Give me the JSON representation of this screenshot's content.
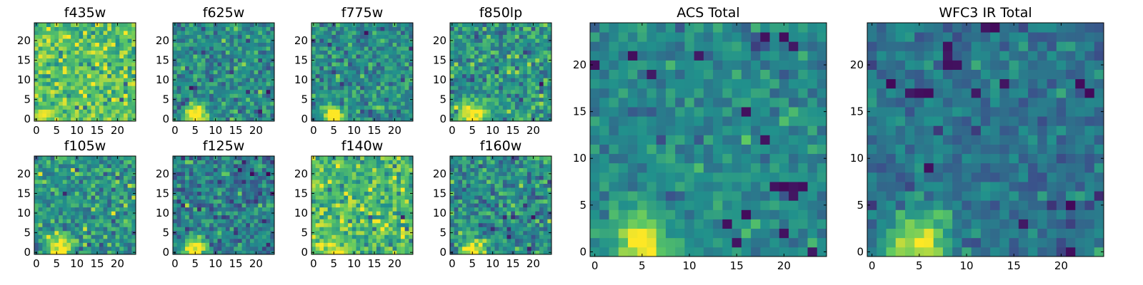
{
  "figure": {
    "colormap": "viridis",
    "colormap_stops": [
      "#440154",
      "#3b528b",
      "#21918c",
      "#5ec962",
      "#fde725"
    ]
  },
  "chart_data": [
    {
      "type": "heatmap",
      "title": "f435w",
      "grid_shape": [
        25,
        25
      ],
      "xlim": [
        -0.5,
        24.5
      ],
      "ylim": [
        -0.5,
        24.5
      ],
      "xticks": [
        0,
        5,
        10,
        15,
        20
      ],
      "yticks": [
        0,
        5,
        10,
        15,
        20
      ],
      "source": {
        "center": [
          5,
          1
        ],
        "sigma": 2.2,
        "amplitude": 0.1
      },
      "background": {
        "mean": 0.72,
        "noise": 0.14
      },
      "values": [
        [
          0.85,
          0.92,
          0.88,
          0.74,
          0.69,
          0.95,
          0.81,
          0.73,
          0.64,
          0.88,
          0.79,
          0.57,
          0.82,
          0.9,
          0.68,
          0.77,
          0.61,
          0.84,
          0.93,
          0.72,
          0.66,
          0.8,
          0.87,
          0.59,
          0.74
        ],
        [
          0.9,
          0.96,
          0.99,
          0.93,
          0.86,
          0.72,
          0.64,
          0.83,
          0.58,
          0.79,
          0.88,
          0.72,
          0.65,
          0.81,
          0.94,
          0.7,
          0.56,
          0.77,
          0.69,
          0.85,
          0.62,
          0.73,
          0.91,
          0.68,
          0.8
        ],
        [
          0.78,
          0.94,
          0.97,
          0.95,
          0.9,
          0.81,
          0.76,
          0.52,
          0.68,
          0.74,
          0.91,
          0.63,
          0.78,
          0.55,
          0.84,
          0.67,
          0.89,
          0.72,
          0.58,
          0.79,
          0.86,
          0.64,
          0.7,
          0.82,
          0.61
        ]
      ]
    },
    {
      "type": "heatmap",
      "title": "f625w",
      "grid_shape": [
        25,
        25
      ],
      "xlim": [
        -0.5,
        24.5
      ],
      "ylim": [
        -0.5,
        24.5
      ],
      "xticks": [
        0,
        5,
        10,
        15,
        20
      ],
      "yticks": [
        0,
        5,
        10,
        15,
        20
      ],
      "source": {
        "center": [
          5,
          1
        ],
        "sigma": 1.8,
        "amplitude": 0.75
      },
      "background": {
        "mean": 0.48,
        "noise": 0.13
      }
    },
    {
      "type": "heatmap",
      "title": "f775w",
      "grid_shape": [
        25,
        25
      ],
      "xlim": [
        -0.5,
        24.5
      ],
      "ylim": [
        -0.5,
        24.5
      ],
      "xticks": [
        0,
        5,
        10,
        15,
        20
      ],
      "yticks": [
        0,
        5,
        10,
        15,
        20
      ],
      "source": {
        "center": [
          5,
          1
        ],
        "sigma": 1.8,
        "amplitude": 0.72
      },
      "background": {
        "mean": 0.48,
        "noise": 0.13
      }
    },
    {
      "type": "heatmap",
      "title": "f850lp",
      "grid_shape": [
        25,
        25
      ],
      "xlim": [
        -0.5,
        24.5
      ],
      "ylim": [
        -0.5,
        24.5
      ],
      "xticks": [
        0,
        5,
        10,
        15,
        20
      ],
      "yticks": [
        0,
        5,
        10,
        15,
        20
      ],
      "source": {
        "center": [
          5,
          1
        ],
        "sigma": 2.0,
        "amplitude": 0.62
      },
      "background": {
        "mean": 0.52,
        "noise": 0.14
      }
    },
    {
      "type": "heatmap",
      "title": "f105w",
      "grid_shape": [
        25,
        25
      ],
      "xlim": [
        -0.5,
        24.5
      ],
      "ylim": [
        -0.5,
        24.5
      ],
      "xticks": [
        0,
        5,
        10,
        15,
        20
      ],
      "yticks": [
        0,
        5,
        10,
        15,
        20
      ],
      "source": {
        "center": [
          6,
          1
        ],
        "sigma": 2.2,
        "amplitude": 0.55
      },
      "background": {
        "mean": 0.52,
        "noise": 0.14
      }
    },
    {
      "type": "heatmap",
      "title": "f125w",
      "grid_shape": [
        25,
        25
      ],
      "xlim": [
        -0.5,
        24.5
      ],
      "ylim": [
        -0.5,
        24.5
      ],
      "xticks": [
        0,
        5,
        10,
        15,
        20
      ],
      "yticks": [
        0,
        5,
        10,
        15,
        20
      ],
      "source": {
        "center": [
          5,
          1
        ],
        "sigma": 2.0,
        "amplitude": 0.7
      },
      "background": {
        "mean": 0.42,
        "noise": 0.13
      }
    },
    {
      "type": "heatmap",
      "title": "f140w",
      "grid_shape": [
        25,
        25
      ],
      "xlim": [
        -0.5,
        24.5
      ],
      "ylim": [
        -0.5,
        24.5
      ],
      "xticks": [
        0,
        5,
        10,
        15,
        20
      ],
      "yticks": [
        0,
        5,
        10,
        15,
        20
      ],
      "source": {
        "center": [
          5,
          1
        ],
        "sigma": 2.6,
        "amplitude": 0.25
      },
      "background": {
        "mean": 0.68,
        "noise": 0.14
      }
    },
    {
      "type": "heatmap",
      "title": "f160w",
      "grid_shape": [
        25,
        25
      ],
      "xlim": [
        -0.5,
        24.5
      ],
      "ylim": [
        -0.5,
        24.5
      ],
      "xticks": [
        0,
        5,
        10,
        15,
        20
      ],
      "yticks": [
        0,
        5,
        10,
        15,
        20
      ],
      "source": {
        "center": [
          5,
          1
        ],
        "sigma": 2.0,
        "amplitude": 0.6
      },
      "background": {
        "mean": 0.48,
        "noise": 0.14
      }
    },
    {
      "type": "heatmap",
      "title": "ACS Total",
      "grid_shape": [
        25,
        25
      ],
      "xlim": [
        -0.5,
        24.5
      ],
      "ylim": [
        -0.5,
        24.5
      ],
      "xticks": [
        0,
        5,
        10,
        15,
        20
      ],
      "yticks": [
        0,
        5,
        10,
        15,
        20
      ],
      "source": {
        "center": [
          5,
          1
        ],
        "sigma": 1.9,
        "amplitude": 0.62
      },
      "background": {
        "mean": 0.47,
        "noise": 0.08
      },
      "dark_pixels": [
        [
          0,
          20
        ],
        [
          6,
          19
        ],
        [
          4,
          21
        ],
        [
          11,
          21
        ],
        [
          18,
          23
        ],
        [
          20,
          23
        ],
        [
          21,
          22
        ],
        [
          16,
          15
        ],
        [
          18,
          12
        ],
        [
          20,
          7
        ],
        [
          21,
          7
        ],
        [
          22,
          7
        ],
        [
          19,
          7
        ],
        [
          21,
          6
        ],
        [
          16,
          4
        ],
        [
          14,
          3
        ],
        [
          20,
          2
        ],
        [
          23,
          0
        ],
        [
          15,
          1
        ]
      ]
    },
    {
      "type": "heatmap",
      "title": "WFC3 IR Total",
      "grid_shape": [
        25,
        25
      ],
      "xlim": [
        -0.5,
        24.5
      ],
      "ylim": [
        -0.5,
        24.5
      ],
      "xticks": [
        0,
        5,
        10,
        15,
        20
      ],
      "yticks": [
        0,
        5,
        10,
        15,
        20
      ],
      "source": {
        "center": [
          5,
          1
        ],
        "sigma": 2.1,
        "amplitude": 0.62
      },
      "background": {
        "mean": 0.38,
        "noise": 0.08
      },
      "dark_pixels": [
        [
          12,
          24
        ],
        [
          13,
          24
        ],
        [
          8,
          21
        ],
        [
          8,
          20
        ],
        [
          9,
          20
        ],
        [
          8,
          22
        ],
        [
          2,
          18
        ],
        [
          4,
          17
        ],
        [
          5,
          17
        ],
        [
          6,
          17
        ],
        [
          11,
          17
        ],
        [
          6,
          9
        ],
        [
          14,
          18
        ],
        [
          22,
          18
        ],
        [
          23,
          17
        ],
        [
          21,
          5
        ],
        [
          16,
          3
        ],
        [
          21,
          0
        ]
      ]
    }
  ]
}
